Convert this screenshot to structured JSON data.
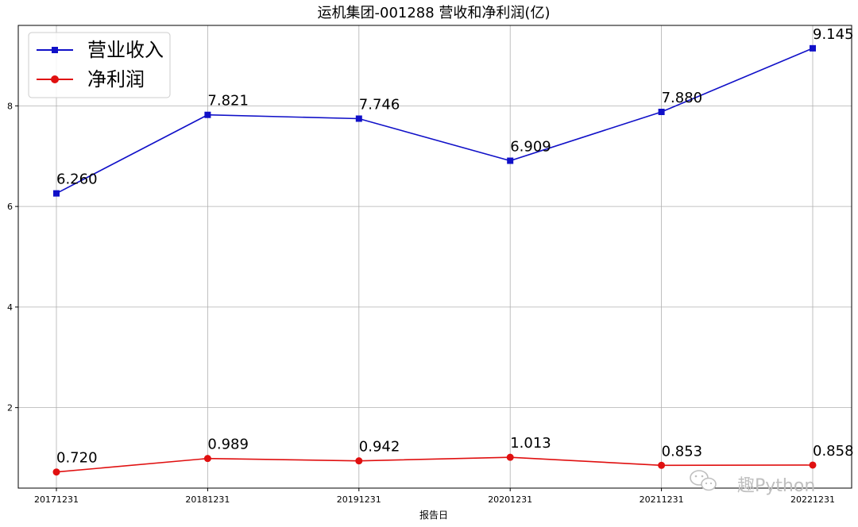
{
  "chart_data": {
    "type": "line",
    "title": "运机集团-001288 营收和净利润(亿)",
    "xlabel": "报告日",
    "ylabel": "",
    "categories": [
      "20171231",
      "20181231",
      "20191231",
      "20201231",
      "20211231",
      "20221231"
    ],
    "ylim": [
      0.4,
      9.6
    ],
    "yticks": [
      2,
      4,
      6,
      8
    ],
    "grid": true,
    "legend_position": "top-left",
    "series": [
      {
        "name": "营业收入",
        "marker": "square",
        "color": "#1010c8",
        "values": [
          6.26,
          7.821,
          7.746,
          6.909,
          7.88,
          9.145
        ],
        "labels": [
          "6.260",
          "7.821",
          "7.746",
          "6.909",
          "7.880",
          "9.145"
        ]
      },
      {
        "name": "净利润",
        "marker": "circle",
        "color": "#e01010",
        "values": [
          0.72,
          0.989,
          0.942,
          1.013,
          0.853,
          0.858
        ],
        "labels": [
          "0.720",
          "0.989",
          "0.942",
          "1.013",
          "0.853",
          "0.858"
        ]
      }
    ]
  },
  "watermark": {
    "text": "趣Python",
    "icon": "wechat-icon"
  }
}
